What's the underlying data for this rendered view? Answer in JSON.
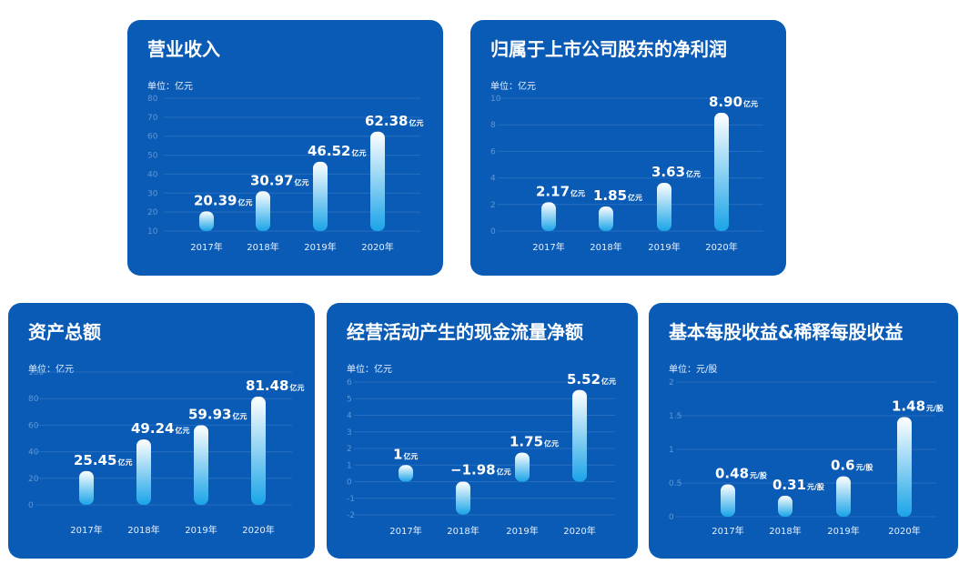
{
  "chart_data": [
    {
      "type": "bar",
      "title": "营业收入",
      "unit_label": "单位：亿元",
      "categories": [
        "2017年",
        "2018年",
        "2019年",
        "2020年"
      ],
      "values": [
        20.39,
        30.97,
        46.52,
        62.38
      ],
      "value_labels": [
        "20.39",
        "30.97",
        "46.52",
        "62.38"
      ],
      "value_unit": "亿元",
      "ylim": [
        10,
        80
      ],
      "yticks": [
        10,
        20,
        30,
        40,
        50,
        60,
        70,
        80
      ],
      "grid": true
    },
    {
      "type": "bar",
      "title": "归属于上市公司股东的净利润",
      "unit_label": "单位：亿元",
      "categories": [
        "2017年",
        "2018年",
        "2019年",
        "2020年"
      ],
      "values": [
        2.17,
        1.85,
        3.63,
        8.9
      ],
      "value_labels": [
        "2.17",
        "1.85",
        "3.63",
        "8.90"
      ],
      "value_unit": "亿元",
      "ylim": [
        0,
        10
      ],
      "yticks": [
        0,
        2,
        4,
        6,
        8,
        10
      ],
      "grid": true
    },
    {
      "type": "bar",
      "title": "资产总额",
      "unit_label": "单位：亿元",
      "categories": [
        "2017年",
        "2018年",
        "2019年",
        "2020年"
      ],
      "values": [
        25.45,
        49.24,
        59.93,
        81.48
      ],
      "value_labels": [
        "25.45",
        "49.24",
        "59.93",
        "81.48"
      ],
      "value_unit": "亿元",
      "ylim": [
        0,
        100
      ],
      "yticks": [
        0,
        20,
        40,
        60,
        80,
        100
      ],
      "grid": true
    },
    {
      "type": "bar",
      "title": "经营活动产生的现金流量净额",
      "unit_label": "单位：亿元",
      "categories": [
        "2017年",
        "2018年",
        "2019年",
        "2020年"
      ],
      "values": [
        1,
        -1.98,
        1.75,
        5.52
      ],
      "value_labels": [
        "1",
        "−1.98",
        "1.75",
        "5.52"
      ],
      "value_unit": "亿元",
      "ylim": [
        -2,
        6
      ],
      "yticks": [
        -2,
        -1,
        0,
        1,
        2,
        3,
        4,
        5,
        6
      ],
      "grid": true
    },
    {
      "type": "bar",
      "title": "基本每股收益&稀释每股收益",
      "unit_label": "单位：元/股",
      "categories": [
        "2017年",
        "2018年",
        "2019年",
        "2020年"
      ],
      "values": [
        0.48,
        0.31,
        0.6,
        1.48
      ],
      "value_labels": [
        "0.48",
        "0.31",
        "0.6",
        "1.48"
      ],
      "value_unit": "元/股",
      "ylim": [
        0,
        2
      ],
      "yticks": [
        0,
        0.5,
        1,
        1.5,
        2
      ],
      "grid": true
    }
  ]
}
